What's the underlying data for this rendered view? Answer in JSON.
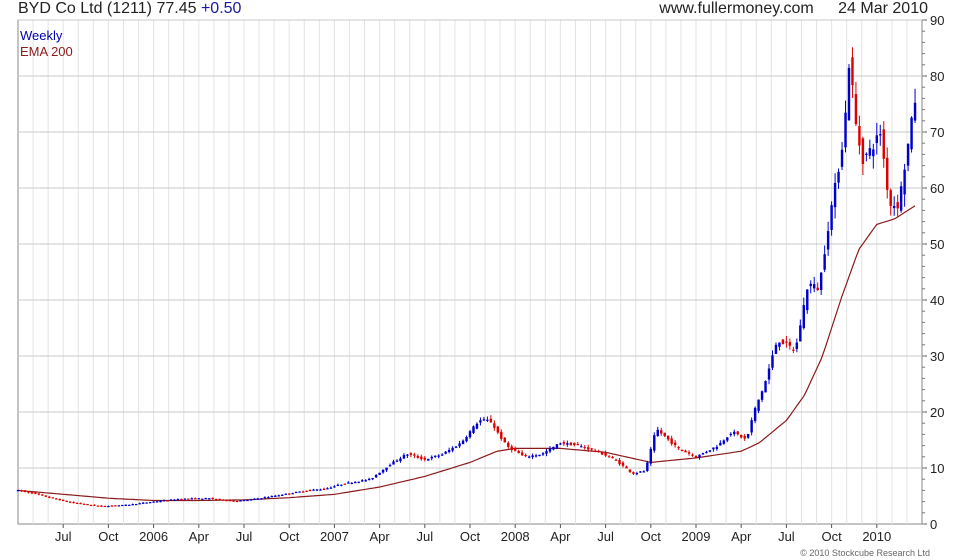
{
  "header": {
    "symbol": "BYD Co Ltd (1211)",
    "price": "77.45",
    "change": "+0.50",
    "site": "www.fullermoney.com",
    "date": "24 Mar 2010"
  },
  "copyright": "© 2010 Stockcube Research Ltd",
  "colors": {
    "up": "#0000cc",
    "down": "#dd0000",
    "ema": "#8b1a1a",
    "grid": "#c8c8c8",
    "legend_weekly": "#0000aa",
    "legend_ema": "#8b1a1a"
  },
  "chart_data": {
    "type": "candlestick",
    "title": "BYD Co Ltd (1211)",
    "legend": [
      "Weekly",
      "EMA 200"
    ],
    "legend_position": "top-left",
    "grid": true,
    "y_axis_side": "right",
    "ylim": [
      0,
      90
    ],
    "yticks": [
      0,
      10,
      20,
      30,
      40,
      50,
      60,
      70,
      80,
      90
    ],
    "xlim": [
      2005.25,
      2010.25
    ],
    "xticks": [
      {
        "label": "Jul",
        "x": 2005.5
      },
      {
        "label": "Oct",
        "x": 2005.75
      },
      {
        "label": "2006",
        "x": 2006.0
      },
      {
        "label": "Apr",
        "x": 2006.25
      },
      {
        "label": "Jul",
        "x": 2006.5
      },
      {
        "label": "Oct",
        "x": 2006.75
      },
      {
        "label": "2007",
        "x": 2007.0
      },
      {
        "label": "Apr",
        "x": 2007.25
      },
      {
        "label": "Jul",
        "x": 2007.5
      },
      {
        "label": "Oct",
        "x": 2007.75
      },
      {
        "label": "2008",
        "x": 2008.0
      },
      {
        "label": "Apr",
        "x": 2008.25
      },
      {
        "label": "Jul",
        "x": 2008.5
      },
      {
        "label": "Oct",
        "x": 2008.75
      },
      {
        "label": "2009",
        "x": 2009.0
      },
      {
        "label": "Apr",
        "x": 2009.25
      },
      {
        "label": "Jul",
        "x": 2009.5
      },
      {
        "label": "Oct",
        "x": 2009.75
      },
      {
        "label": "2010",
        "x": 2010.0
      }
    ],
    "price_path": [
      [
        2005.25,
        6
      ],
      [
        2005.33,
        5.5
      ],
      [
        2005.45,
        4.5
      ],
      [
        2005.55,
        3.8
      ],
      [
        2005.7,
        3.2
      ],
      [
        2005.85,
        3.4
      ],
      [
        2006.0,
        4.0
      ],
      [
        2006.15,
        4.5
      ],
      [
        2006.3,
        4.6
      ],
      [
        2006.45,
        4.1
      ],
      [
        2006.55,
        4.4
      ],
      [
        2006.7,
        5.2
      ],
      [
        2006.85,
        6.0
      ],
      [
        2006.95,
        6.3
      ],
      [
        2007.05,
        7.2
      ],
      [
        2007.2,
        8.0
      ],
      [
        2007.3,
        10.5
      ],
      [
        2007.4,
        12.5
      ],
      [
        2007.5,
        11.5
      ],
      [
        2007.6,
        12.5
      ],
      [
        2007.7,
        14.5
      ],
      [
        2007.8,
        18.5
      ],
      [
        2007.86,
        18.5
      ],
      [
        2007.95,
        14.0
      ],
      [
        2008.05,
        12.0
      ],
      [
        2008.15,
        12.5
      ],
      [
        2008.25,
        14.5
      ],
      [
        2008.35,
        14.0
      ],
      [
        2008.45,
        13.0
      ],
      [
        2008.55,
        11.5
      ],
      [
        2008.65,
        9.0
      ],
      [
        2008.72,
        9.5
      ],
      [
        2008.78,
        17.0
      ],
      [
        2008.9,
        13.5
      ],
      [
        2009.0,
        12.0
      ],
      [
        2009.12,
        14.0
      ],
      [
        2009.2,
        16.5
      ],
      [
        2009.28,
        15.0
      ],
      [
        2009.32,
        20.0
      ],
      [
        2009.38,
        25.0
      ],
      [
        2009.45,
        33.0
      ],
      [
        2009.55,
        31.0
      ],
      [
        2009.62,
        43.0
      ],
      [
        2009.68,
        42.0
      ],
      [
        2009.74,
        55.0
      ],
      [
        2009.78,
        62.0
      ],
      [
        2009.82,
        70.0
      ],
      [
        2009.85,
        84.0
      ],
      [
        2009.88,
        72.0
      ],
      [
        2009.92,
        65.0
      ],
      [
        2009.97,
        67.0
      ],
      [
        2010.02,
        70.0
      ],
      [
        2010.07,
        57.0
      ],
      [
        2010.12,
        57.0
      ],
      [
        2010.17,
        67.0
      ],
      [
        2010.22,
        77.45
      ]
    ],
    "ema_200": [
      [
        2005.25,
        6.0
      ],
      [
        2005.5,
        5.3
      ],
      [
        2005.75,
        4.6
      ],
      [
        2006.0,
        4.2
      ],
      [
        2006.25,
        4.2
      ],
      [
        2006.5,
        4.3
      ],
      [
        2006.75,
        4.7
      ],
      [
        2007.0,
        5.3
      ],
      [
        2007.25,
        6.6
      ],
      [
        2007.5,
        8.5
      ],
      [
        2007.75,
        11.0
      ],
      [
        2007.9,
        13.0
      ],
      [
        2008.0,
        13.5
      ],
      [
        2008.25,
        13.5
      ],
      [
        2008.5,
        12.8
      ],
      [
        2008.75,
        11.0
      ],
      [
        2009.0,
        11.8
      ],
      [
        2009.25,
        13.0
      ],
      [
        2009.35,
        14.5
      ],
      [
        2009.5,
        18.5
      ],
      [
        2009.6,
        23.0
      ],
      [
        2009.7,
        30.0
      ],
      [
        2009.8,
        40.0
      ],
      [
        2009.9,
        49.0
      ],
      [
        2010.0,
        53.5
      ],
      [
        2010.1,
        54.5
      ],
      [
        2010.22,
        57.0
      ]
    ]
  }
}
